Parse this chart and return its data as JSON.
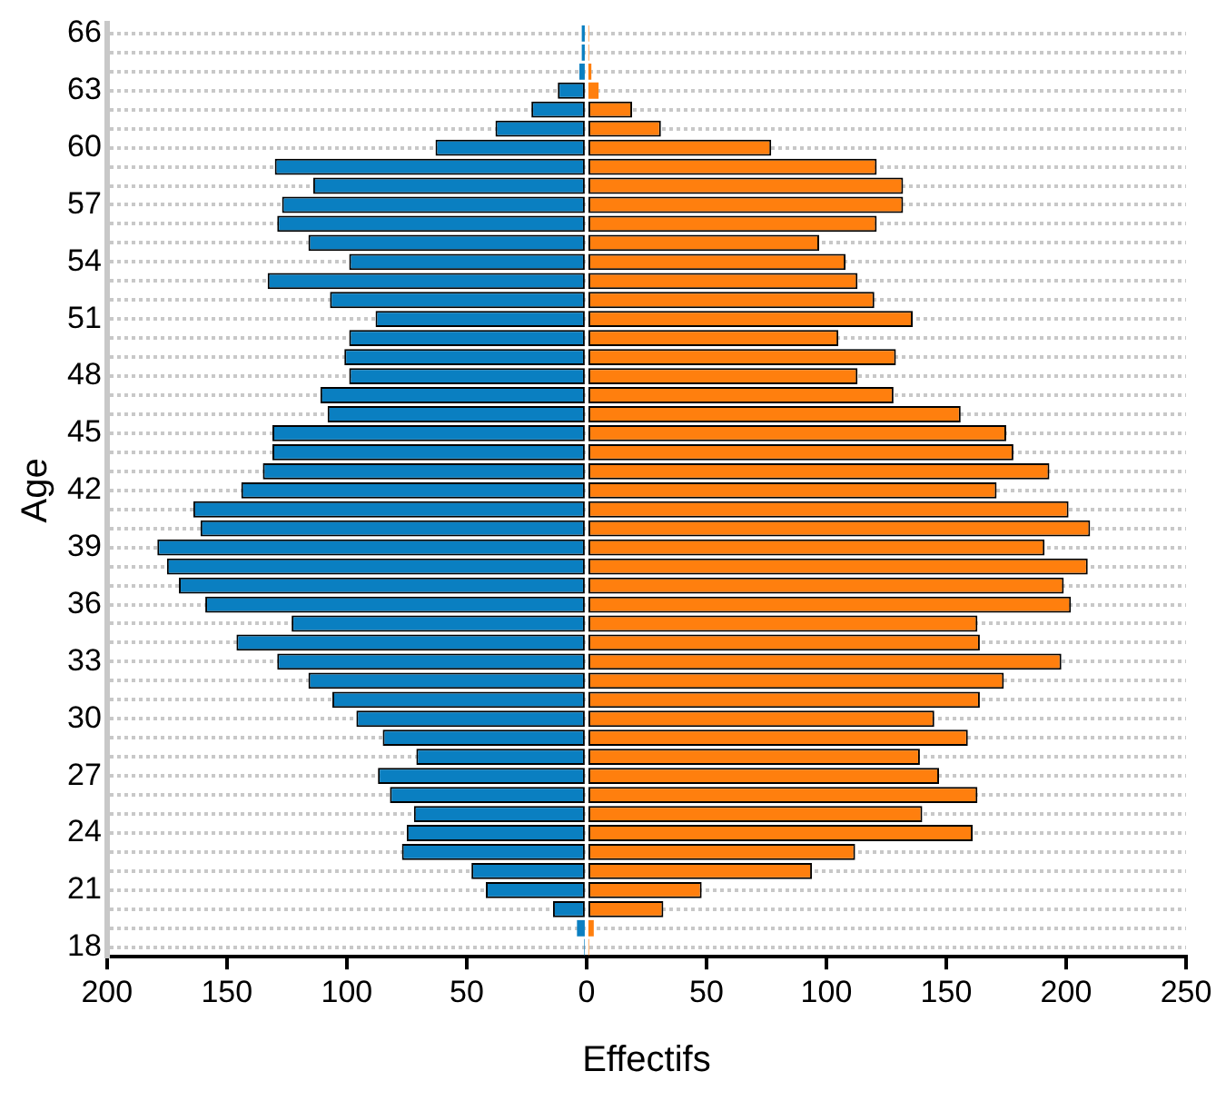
{
  "chart_data": {
    "type": "bar",
    "orientation": "horizontal",
    "xlabel": "Effectifs",
    "ylabel": "Age",
    "categories": [
      "66",
      null,
      null,
      "63",
      null,
      null,
      "60",
      null,
      null,
      "57",
      null,
      null,
      "54",
      null,
      null,
      "51",
      null,
      null,
      "48",
      null,
      null,
      "45",
      null,
      null,
      "42",
      null,
      null,
      "39",
      null,
      null,
      "36",
      null,
      null,
      "33",
      null,
      null,
      "30",
      null,
      null,
      "27",
      null,
      null,
      "24",
      null,
      null,
      "21",
      null,
      null,
      "18"
    ],
    "series": [
      {
        "color": "#0a7fc1",
        "values": [
          -2,
          -2,
          -3,
          -12,
          -23,
          -38,
          -63,
          -130,
          -114,
          -127,
          -129,
          -116,
          -99,
          -133,
          -107,
          -88,
          -99,
          -101,
          -99,
          -111,
          -108,
          -131,
          -131,
          -135,
          -144,
          -164,
          -161,
          -179,
          -175,
          -170,
          -159,
          -123,
          -146,
          -129,
          -116,
          -106,
          -96,
          -85,
          -71,
          -87,
          -82,
          -72,
          -75,
          -77,
          -48,
          -42,
          -14,
          -4,
          -1
        ]
      },
      {
        "color": "#ff7f0e",
        "values": [
          1,
          1,
          2,
          5,
          19,
          31,
          77,
          121,
          132,
          132,
          121,
          97,
          108,
          113,
          120,
          136,
          105,
          129,
          113,
          128,
          156,
          175,
          178,
          193,
          171,
          201,
          210,
          191,
          209,
          199,
          202,
          163,
          164,
          198,
          174,
          164,
          145,
          159,
          139,
          147,
          163,
          140,
          161,
          112,
          94,
          48,
          32,
          3,
          1
        ]
      }
    ],
    "xlim": [
      -200,
      250
    ],
    "xticks": [
      {
        "value": -200,
        "label": "200"
      },
      {
        "value": -150,
        "label": "150"
      },
      {
        "value": -100,
        "label": "100"
      },
      {
        "value": -50,
        "label": "50"
      },
      0,
      50,
      100,
      150,
      200,
      250
    ],
    "grid": "y",
    "stacked": true
  }
}
